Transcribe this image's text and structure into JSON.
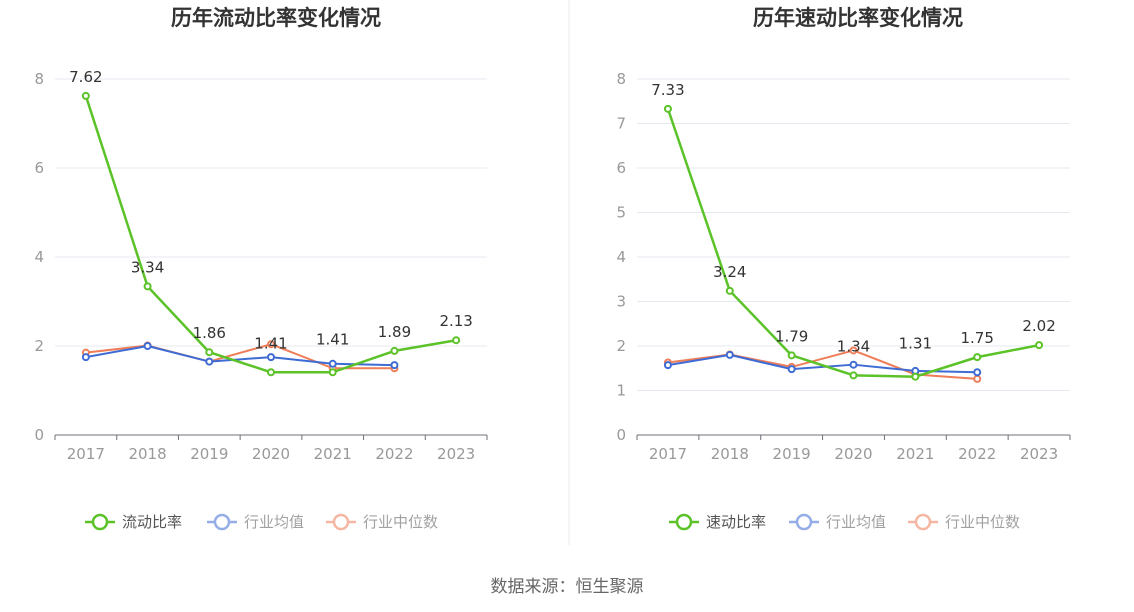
{
  "source_label": "数据来源：恒生聚源",
  "colors": {
    "series": [
      "#5bc228",
      "#3e6bd4",
      "#ee7d58"
    ],
    "grid": "#e6e8ef",
    "axis": "#6e7079",
    "divider": "#ebebeb"
  },
  "chart_data": [
    {
      "type": "line",
      "title": "历年流动比率变化情况",
      "xlabel": "",
      "ylabel": "",
      "categories": [
        "2017",
        "2018",
        "2019",
        "2020",
        "2021",
        "2022",
        "2023"
      ],
      "ylim": [
        0,
        8
      ],
      "yticks": [
        0,
        2,
        4,
        6,
        8
      ],
      "grid": true,
      "legend_position": "bottom-center",
      "series": [
        {
          "name": "流动比率",
          "values": [
            7.62,
            3.34,
            1.86,
            1.41,
            1.41,
            1.89,
            2.13
          ],
          "labels": [
            "7.62",
            "3.34",
            "1.86",
            "1.41",
            "1.41",
            "1.89",
            "2.13"
          ]
        },
        {
          "name": "行业均值",
          "values": [
            1.75,
            2.0,
            1.65,
            1.75,
            1.6,
            1.57,
            null
          ]
        },
        {
          "name": "行业中位数",
          "values": [
            1.85,
            2.01,
            1.65,
            2.04,
            1.5,
            1.5,
            null
          ]
        }
      ]
    },
    {
      "type": "line",
      "title": "历年速动比率变化情况",
      "xlabel": "",
      "ylabel": "",
      "categories": [
        "2017",
        "2018",
        "2019",
        "2020",
        "2021",
        "2022",
        "2023"
      ],
      "ylim": [
        0,
        8
      ],
      "yticks": [
        0,
        1,
        2,
        3,
        4,
        5,
        6,
        7,
        8
      ],
      "grid": true,
      "legend_position": "bottom-center",
      "series": [
        {
          "name": "速动比率",
          "values": [
            7.33,
            3.24,
            1.79,
            1.34,
            1.31,
            1.75,
            2.02
          ],
          "labels": [
            "7.33",
            "3.24",
            "1.79",
            "1.34",
            "1.31",
            "1.75",
            "2.02"
          ]
        },
        {
          "name": "行业均值",
          "values": [
            1.57,
            1.8,
            1.48,
            1.58,
            1.44,
            1.41,
            null
          ]
        },
        {
          "name": "行业中位数",
          "values": [
            1.63,
            1.81,
            1.53,
            1.9,
            1.36,
            1.26,
            null
          ]
        }
      ]
    }
  ]
}
